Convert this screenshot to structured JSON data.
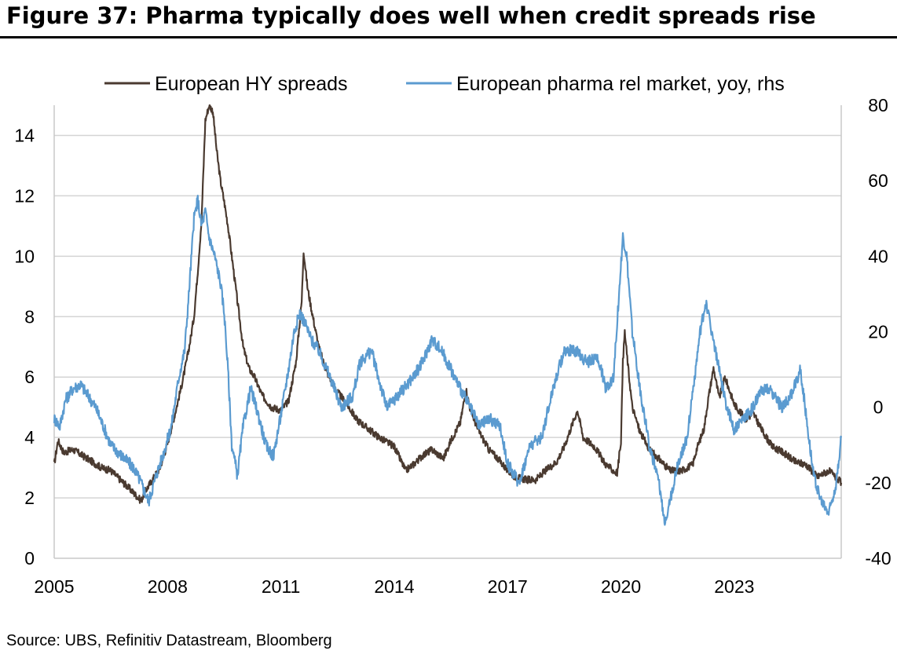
{
  "figure": {
    "title": "Figure 37: Pharma typically does well when credit spreads rise",
    "source": "Source: UBS, Refinitiv Datastream, Bloomberg"
  },
  "colors": {
    "hy": "#4a3a30",
    "pharma": "#5b9bd0",
    "grid": "#d4d4d4"
  },
  "chart_data": {
    "type": "line",
    "title": "Figure 37: Pharma typically does well when credit spreads rise",
    "xlabel": "",
    "ylabel": "",
    "x_ticks": [
      "2005",
      "2008",
      "2011",
      "2014",
      "2017",
      "2020",
      "2023"
    ],
    "x_range": [
      2005.0,
      2025.83
    ],
    "y_left": {
      "range": [
        0,
        15
      ],
      "ticks": [
        0,
        2,
        4,
        6,
        8,
        10,
        12,
        14
      ]
    },
    "y_right": {
      "range": [
        -40,
        80
      ],
      "ticks": [
        -40,
        -20,
        0,
        20,
        40,
        60,
        80
      ]
    },
    "grid": true,
    "legend_position": "top",
    "series": [
      {
        "name": "European HY spreads",
        "axis": "left",
        "color": "#4a3a30",
        "x": [
          2005.0,
          2005.1,
          2005.25,
          2005.5,
          2005.75,
          2006.0,
          2006.25,
          2006.5,
          2006.75,
          2007.0,
          2007.15,
          2007.3,
          2007.4,
          2007.6,
          2007.8,
          2008.0,
          2008.2,
          2008.35,
          2008.5,
          2008.6,
          2008.7,
          2008.8,
          2008.9,
          2009.0,
          2009.1,
          2009.2,
          2009.3,
          2009.4,
          2009.5,
          2009.6,
          2009.75,
          2009.9,
          2010.0,
          2010.15,
          2010.3,
          2010.5,
          2010.75,
          2011.0,
          2011.2,
          2011.4,
          2011.55,
          2011.6,
          2011.7,
          2011.8,
          2012.0,
          2012.2,
          2012.5,
          2012.75,
          2013.0,
          2013.3,
          2013.6,
          2014.0,
          2014.3,
          2014.5,
          2014.75,
          2015.0,
          2015.3,
          2015.5,
          2015.75,
          2015.9,
          2016.0,
          2016.2,
          2016.5,
          2016.75,
          2017.0,
          2017.2,
          2017.5,
          2017.75,
          2018.0,
          2018.3,
          2018.5,
          2018.7,
          2018.85,
          2019.0,
          2019.3,
          2019.6,
          2019.8,
          2019.9,
          2020.0,
          2020.05,
          2020.1,
          2020.2,
          2020.3,
          2020.5,
          2020.75,
          2021.0,
          2021.3,
          2021.6,
          2021.9,
          2022.0,
          2022.2,
          2022.3,
          2022.45,
          2022.6,
          2022.75,
          2023.0,
          2023.3,
          2023.5,
          2023.75,
          2024.0,
          2024.3,
          2024.6,
          2024.9,
          2025.2,
          2025.5,
          2025.83
        ],
        "values": [
          3.1,
          3.9,
          3.5,
          3.6,
          3.4,
          3.2,
          3.0,
          2.9,
          2.6,
          2.3,
          2.1,
          1.9,
          2.2,
          2.6,
          3.0,
          3.8,
          4.8,
          5.6,
          6.5,
          7.2,
          8.0,
          9.5,
          11.2,
          14.5,
          15.0,
          14.8,
          13.5,
          12.5,
          11.8,
          11.0,
          9.5,
          8.0,
          7.0,
          6.3,
          6.0,
          5.4,
          5.0,
          4.9,
          5.2,
          6.5,
          8.5,
          10.2,
          9.0,
          8.3,
          7.0,
          6.2,
          5.5,
          5.1,
          4.6,
          4.3,
          4.0,
          3.7,
          2.9,
          3.1,
          3.4,
          3.6,
          3.3,
          3.9,
          4.5,
          5.6,
          5.0,
          4.3,
          3.6,
          3.3,
          2.9,
          2.7,
          2.6,
          2.6,
          2.9,
          3.2,
          3.7,
          4.4,
          4.9,
          4.0,
          3.7,
          3.1,
          2.9,
          2.8,
          3.9,
          6.5,
          7.5,
          6.2,
          5.0,
          4.2,
          3.6,
          3.3,
          2.9,
          2.9,
          3.1,
          3.6,
          4.3,
          5.2,
          6.3,
          5.3,
          6.0,
          5.1,
          4.6,
          4.8,
          4.2,
          3.7,
          3.5,
          3.2,
          3.1,
          2.7,
          2.9,
          2.5
        ]
      },
      {
        "name": "European pharma rel market, yoy, rhs",
        "axis": "right",
        "color": "#5b9bd0",
        "x": [
          2005.0,
          2005.15,
          2005.3,
          2005.5,
          2005.7,
          2005.9,
          2006.1,
          2006.3,
          2006.5,
          2006.7,
          2006.9,
          2007.1,
          2007.3,
          2007.5,
          2007.7,
          2007.9,
          2008.1,
          2008.3,
          2008.45,
          2008.55,
          2008.7,
          2008.8,
          2008.9,
          2009.0,
          2009.1,
          2009.25,
          2009.4,
          2009.5,
          2009.6,
          2009.7,
          2009.85,
          2010.0,
          2010.2,
          2010.4,
          2010.6,
          2010.8,
          2011.0,
          2011.2,
          2011.35,
          2011.5,
          2011.65,
          2011.8,
          2012.0,
          2012.3,
          2012.6,
          2012.9,
          2013.1,
          2013.4,
          2013.6,
          2013.8,
          2014.0,
          2014.25,
          2014.5,
          2014.75,
          2015.0,
          2015.25,
          2015.5,
          2015.75,
          2016.0,
          2016.25,
          2016.5,
          2016.8,
          2017.0,
          2017.3,
          2017.6,
          2017.9,
          2018.2,
          2018.5,
          2018.8,
          2019.1,
          2019.4,
          2019.6,
          2019.8,
          2019.95,
          2020.05,
          2020.15,
          2020.3,
          2020.5,
          2020.75,
          2021.0,
          2021.15,
          2021.3,
          2021.5,
          2021.75,
          2022.0,
          2022.1,
          2022.25,
          2022.5,
          2022.75,
          2023.0,
          2023.25,
          2023.5,
          2023.75,
          2024.0,
          2024.25,
          2024.5,
          2024.75,
          2024.95,
          2025.1,
          2025.3,
          2025.5,
          2025.7,
          2025.83
        ],
        "values": [
          -3,
          -5,
          2,
          5,
          6,
          3,
          0,
          -5,
          -10,
          -12,
          -14,
          -16,
          -20,
          -25,
          -18,
          -12,
          -5,
          8,
          15,
          28,
          50,
          55,
          48,
          52,
          45,
          40,
          33,
          25,
          10,
          -10,
          -18,
          -5,
          5,
          -2,
          -10,
          -13,
          -2,
          10,
          20,
          25,
          22,
          18,
          15,
          8,
          0,
          3,
          12,
          15,
          7,
          0,
          2,
          5,
          8,
          12,
          18,
          15,
          10,
          5,
          0,
          -5,
          -3,
          -5,
          -15,
          -20,
          -10,
          -8,
          5,
          15,
          15,
          12,
          13,
          5,
          8,
          30,
          45,
          40,
          20,
          5,
          -10,
          -20,
          -30,
          -25,
          -15,
          -8,
          12,
          20,
          28,
          15,
          2,
          -6,
          -3,
          0,
          5,
          4,
          0,
          3,
          10,
          -6,
          -18,
          -25,
          -28,
          -20,
          -8
        ]
      }
    ]
  }
}
